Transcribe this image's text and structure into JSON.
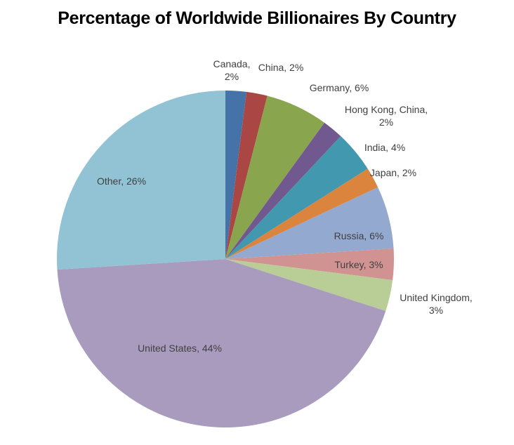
{
  "chart_data": {
    "type": "pie",
    "title": "Percentage of Worldwide Billionaires By Country",
    "start": "top, clockwise",
    "legend": "none",
    "slices": [
      {
        "label": "Canada",
        "value": 2,
        "text": "Canada,\n2%",
        "color": "#4572A7"
      },
      {
        "label": "China",
        "value": 2,
        "text": "China, 2%",
        "color": "#AA4643"
      },
      {
        "label": "Germany",
        "value": 6,
        "text": "Germany, 6%",
        "color": "#89A54E"
      },
      {
        "label": "Hong Kong, China",
        "value": 2,
        "text": "Hong Kong, China,\n2%",
        "color": "#71588F"
      },
      {
        "label": "India",
        "value": 4,
        "text": "India, 4%",
        "color": "#4198AF"
      },
      {
        "label": "Japan",
        "value": 2,
        "text": "Japan, 2%",
        "color": "#DB843D"
      },
      {
        "label": "Russia",
        "value": 6,
        "text": "Russia, 6%",
        "color": "#93A9CF"
      },
      {
        "label": "Turkey",
        "value": 3,
        "text": "Turkey, 3%",
        "color": "#D19392"
      },
      {
        "label": "United Kingdom",
        "value": 3,
        "text": "United Kingdom,\n3%",
        "color": "#B9CD96"
      },
      {
        "label": "United States",
        "value": 44,
        "text": "United States, 44%",
        "color": "#A99BBD"
      },
      {
        "label": "Other",
        "value": 26,
        "text": "Other, 26%",
        "color": "#92C3D4"
      }
    ]
  }
}
